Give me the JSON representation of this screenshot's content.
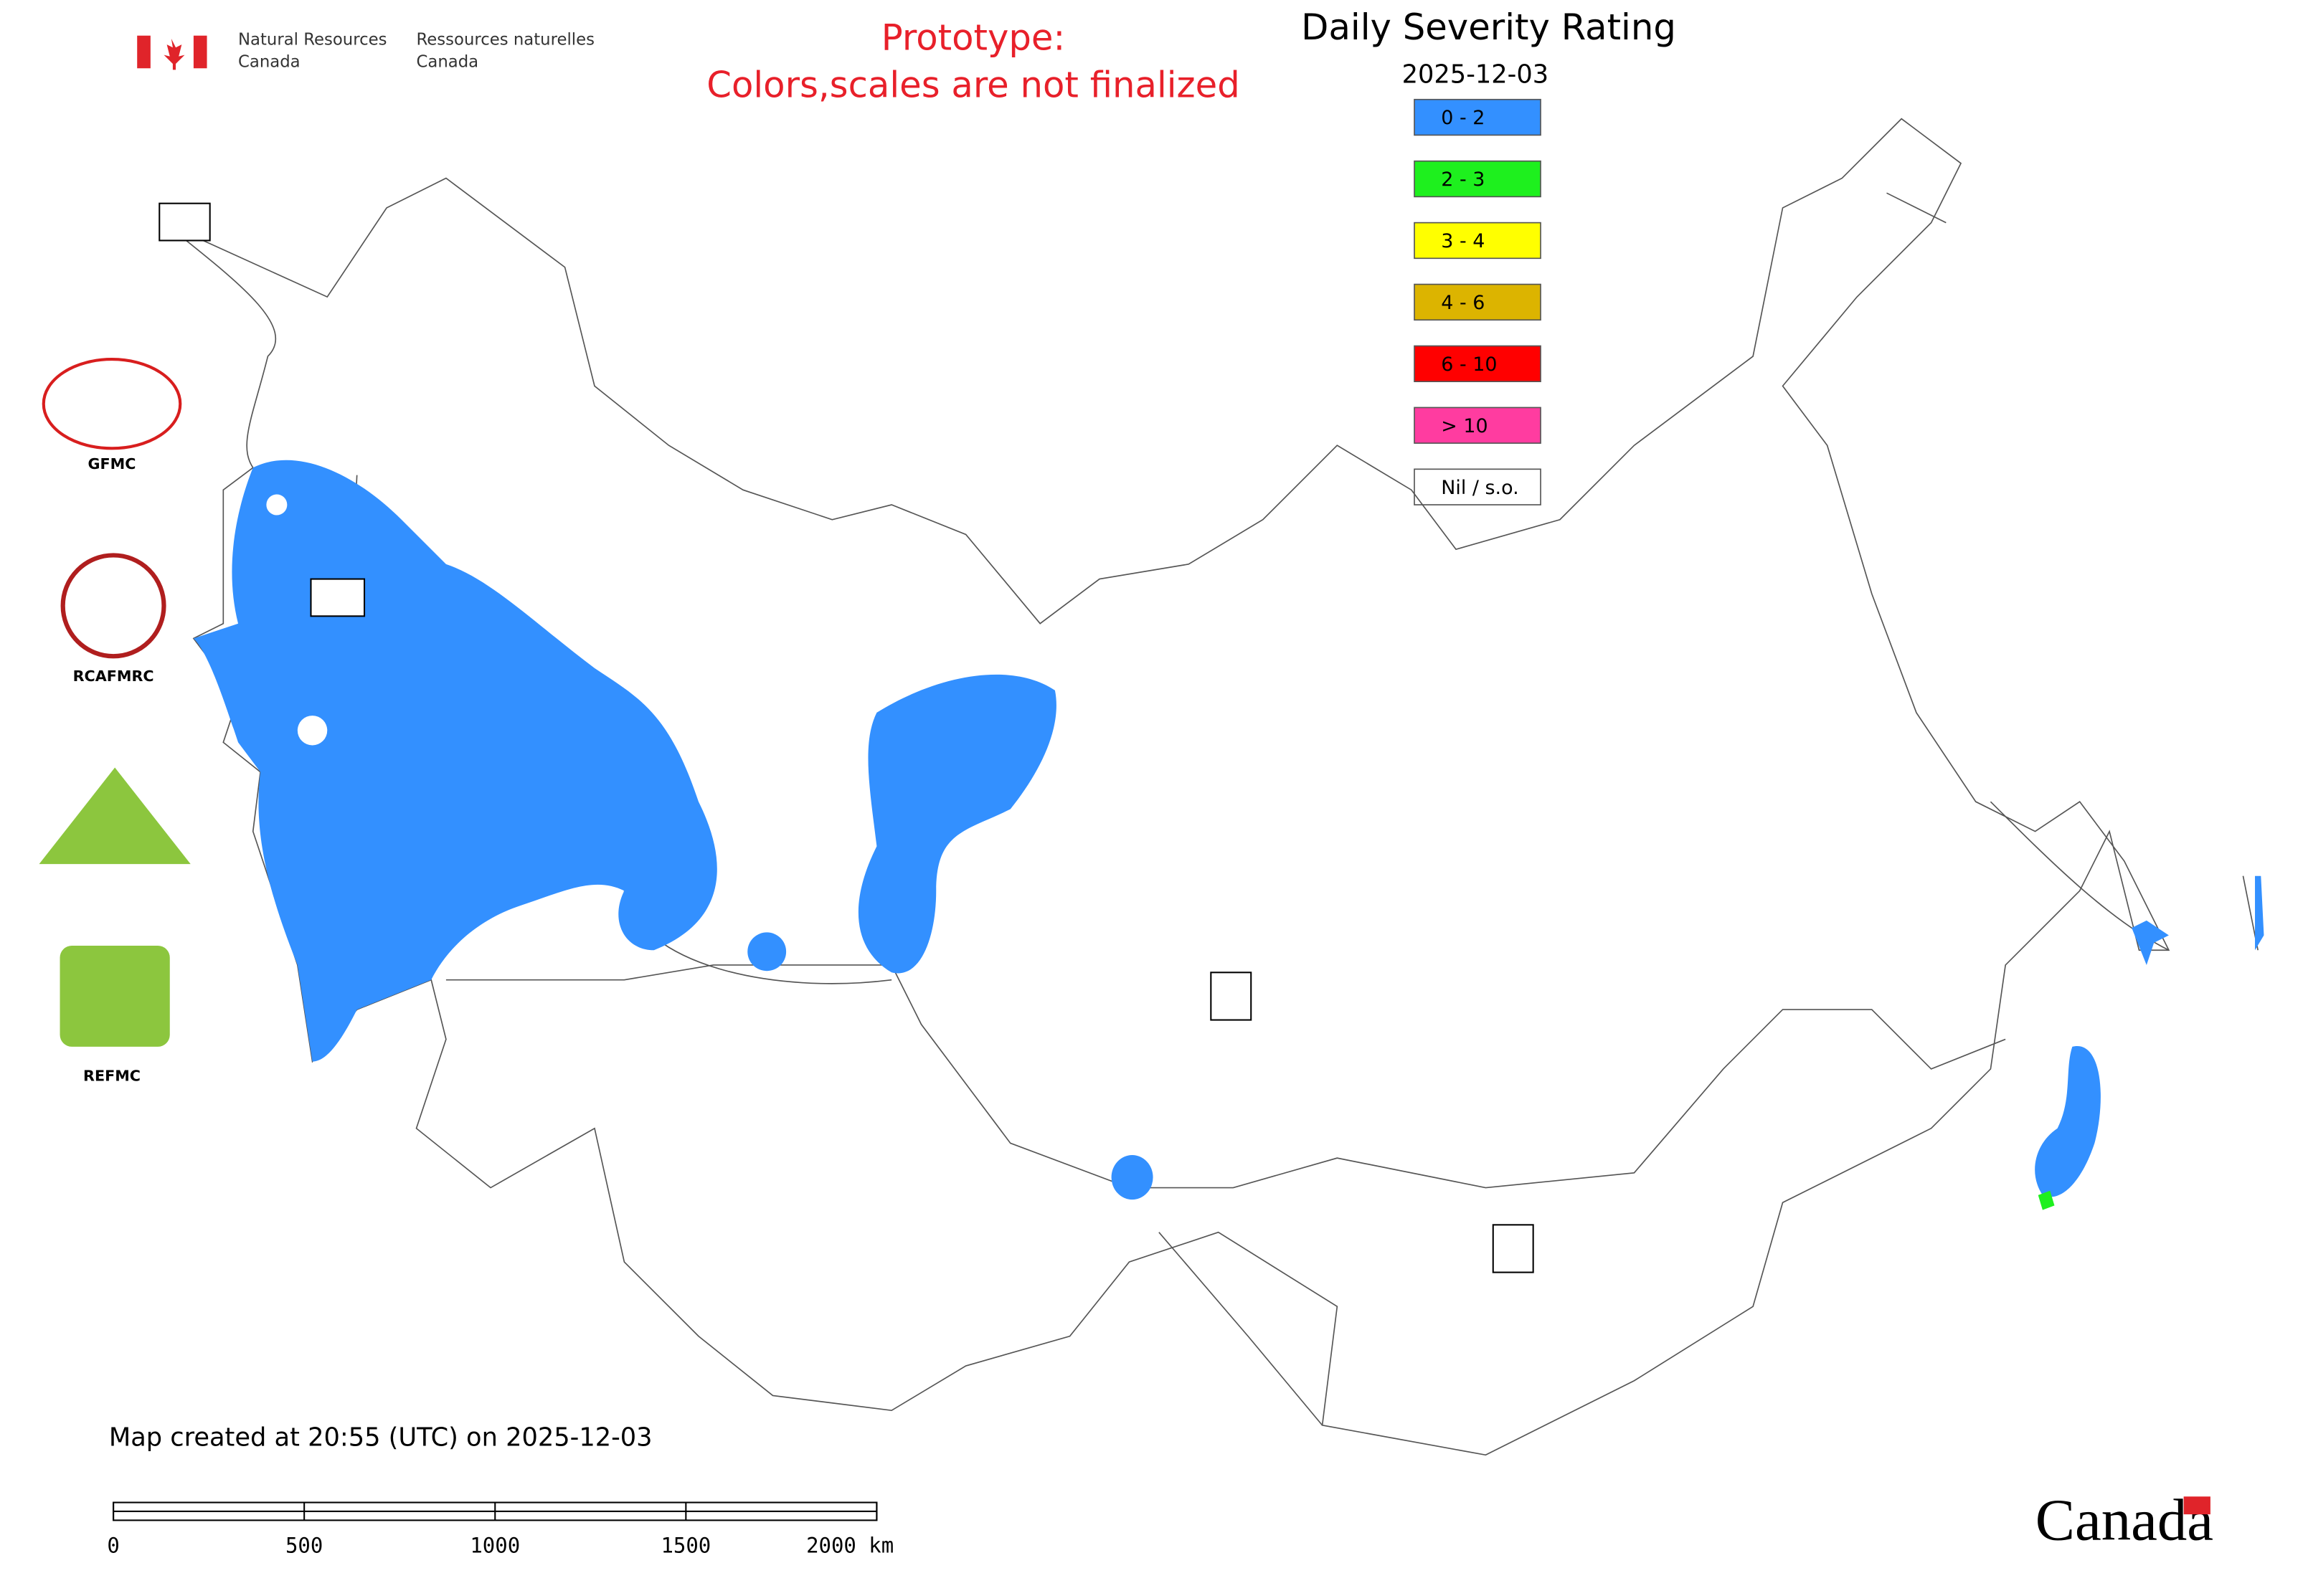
{
  "header": {
    "dept_en": [
      "Natural Resources",
      "Canada"
    ],
    "dept_fr": [
      "Ressources naturelles",
      "Canada"
    ]
  },
  "notice": [
    "Prototype:",
    "Colors,scales are not finalized"
  ],
  "title": "Daily Severity Rating",
  "date": "2025-12-03",
  "legend": [
    {
      "label": "0 - 2",
      "color": "#3390ff"
    },
    {
      "label": "2 - 3",
      "color": "#1ef01e"
    },
    {
      "label": "3 - 4",
      "color": "#ffff00"
    },
    {
      "label": "4 - 6",
      "color": "#dcb400"
    },
    {
      "label": "6 - 10",
      "color": "#ff0000"
    },
    {
      "label": "> 10",
      "color": "#ff3ca0"
    },
    {
      "label": "Nil / s.o.",
      "color": "#ffffff"
    }
  ],
  "logos": [
    "GFMC",
    "RCAFMRC",
    "REFMC"
  ],
  "footer": {
    "created": "Map created at 20:55 (UTC) on 2025-12-03",
    "wordmark": "Canada"
  },
  "scale_bar": {
    "ticks": [
      0,
      500,
      1000,
      1500,
      {
        "value": 2000,
        "label": "2000 km"
      }
    ]
  }
}
